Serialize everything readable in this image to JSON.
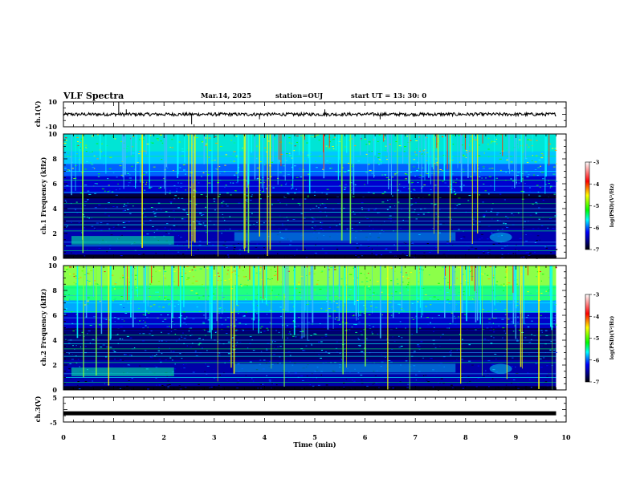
{
  "header": {
    "title": "VLF Spectra",
    "date": "Mar.14, 2025",
    "station": "station=OUJ",
    "start": "start UT = 13: 30: 0"
  },
  "colorbar": {
    "label": "log(PSD)(V²/Hz)",
    "ticks": [
      "-3",
      "-4",
      "-5",
      "-6",
      "-7"
    ],
    "colors": [
      "#ffffff",
      "#ff0000",
      "#ffff00",
      "#00ff00",
      "#00ffff",
      "#0000ff",
      "#000060",
      "#000000"
    ]
  },
  "chart_data": [
    {
      "type": "line",
      "name": "ch1-waveform",
      "ylabel": "ch.1(V)",
      "ylim": [
        -10,
        10
      ],
      "ytick_labels": [
        "10",
        "-10"
      ],
      "xlim": [
        0,
        10
      ],
      "baseline": 0,
      "spikes": [
        {
          "t": 1.1,
          "v": 10
        },
        {
          "t": 1.25,
          "v": 4
        },
        {
          "t": 2.55,
          "v": -8
        },
        {
          "t": 3.9,
          "v": -4
        },
        {
          "t": 5.2,
          "v": 4
        },
        {
          "t": 6.3,
          "v": -4
        }
      ]
    },
    {
      "type": "heatmap",
      "name": "ch1-spectrogram",
      "ylabel": "ch.1 Frequency (kHz)",
      "ylim": [
        0,
        10
      ],
      "ytick_labels": [
        "0",
        "2",
        "4",
        "6",
        "8",
        "10"
      ],
      "xlim": [
        0,
        10
      ],
      "data_end_min": 9.8,
      "zlim": [
        -7,
        -3
      ]
    },
    {
      "type": "heatmap",
      "name": "ch2-spectrogram",
      "ylabel": "ch.2 Frequency (kHz)",
      "ylim": [
        0,
        10
      ],
      "ytick_labels": [
        "0",
        "2",
        "4",
        "6",
        "8",
        "10"
      ],
      "xlim": [
        0,
        10
      ],
      "data_end_min": 9.8,
      "zlim": [
        -7,
        -3
      ]
    },
    {
      "type": "line",
      "name": "ch3-waveform",
      "ylabel": "ch.3(V)",
      "ylim": [
        -5,
        5
      ],
      "ytick_labels": [
        "5",
        "-5"
      ],
      "xlim": [
        0,
        10
      ],
      "baseline": -1.5
    }
  ],
  "xaxis": {
    "label": "Time (min)",
    "tick_labels": [
      "0",
      "1",
      "2",
      "3",
      "4",
      "5",
      "6",
      "7",
      "8",
      "9",
      "10"
    ]
  }
}
